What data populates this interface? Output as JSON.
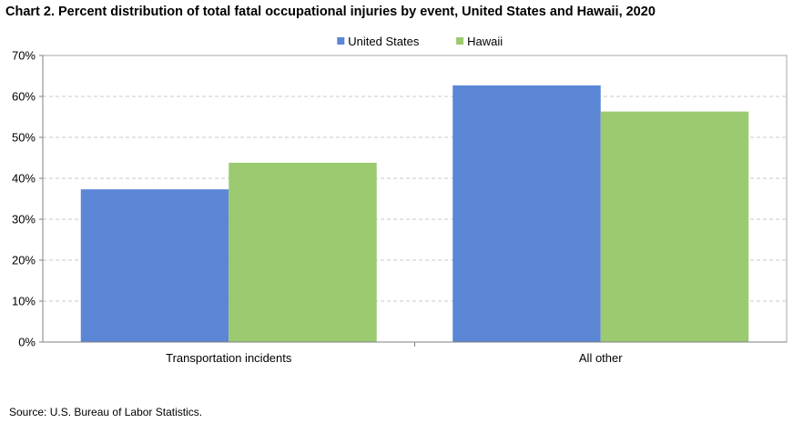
{
  "chart_data": {
    "type": "bar",
    "title": "Chart 2. Percent distribution of total fatal occupational injuries by event, United States and Hawaii, 2020",
    "xlabel": "",
    "ylabel": "",
    "categories": [
      "Transportation incidents",
      "All other"
    ],
    "series": [
      {
        "name": "United States",
        "color": "#5b86d6",
        "values": [
          37.3,
          62.7
        ]
      },
      {
        "name": "Hawaii",
        "color": "#9bca70",
        "values": [
          43.8,
          56.3
        ]
      }
    ],
    "ylim": [
      0,
      70
    ],
    "yticks": [
      0,
      10,
      20,
      30,
      40,
      50,
      60,
      70
    ],
    "ytick_labels": [
      "0%",
      "10%",
      "20%",
      "30%",
      "40%",
      "50%",
      "60%",
      "70%"
    ],
    "grid": true,
    "legend_position": "top-center"
  },
  "footer": {
    "source": "Source: U.S. Bureau of Labor Statistics."
  }
}
